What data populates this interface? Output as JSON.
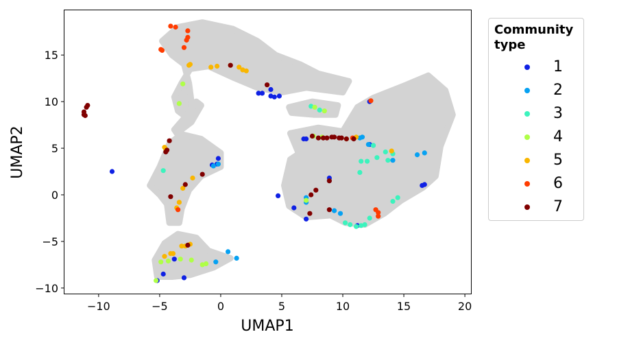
{
  "chart_data": {
    "type": "scatter",
    "xlabel": "UMAP1",
    "ylabel": "UMAP2",
    "xlim": [
      -12.8,
      20.5
    ],
    "ylim": [
      -10.6,
      19.8
    ],
    "xticks": [
      -10,
      -5,
      0,
      5,
      10,
      15,
      20
    ],
    "yticks": [
      -10,
      -5,
      0,
      5,
      10,
      15
    ],
    "grid": false,
    "legend": {
      "title": "Community type",
      "placement": "outside-right",
      "entries": [
        "1",
        "2",
        "3",
        "4",
        "5",
        "6",
        "7"
      ]
    },
    "background_color": "#d3d3d3",
    "background_regions": [
      {
        "name": "top-arm",
        "poly": [
          [
            -4.8,
            16.5
          ],
          [
            -3.5,
            18
          ],
          [
            -1.5,
            18.5
          ],
          [
            1,
            17.8
          ],
          [
            3,
            16.5
          ],
          [
            4.5,
            15
          ],
          [
            6.5,
            14
          ],
          [
            8,
            13
          ],
          [
            10.5,
            12.2
          ],
          [
            10,
            11
          ],
          [
            7,
            11.5
          ],
          [
            5,
            11
          ],
          [
            3,
            11.5
          ],
          [
            1,
            12.6
          ],
          [
            -1,
            13.8
          ],
          [
            -2.5,
            13.5
          ],
          [
            -3.2,
            12
          ],
          [
            -3.8,
            10.5
          ],
          [
            -3.5,
            9
          ],
          [
            -2.5,
            8
          ],
          [
            -2.4,
            10
          ],
          [
            -2.6,
            12
          ],
          [
            -3,
            14
          ],
          [
            -4,
            15
          ]
        ]
      },
      {
        "name": "middle-blob",
        "poly": [
          [
            -5.8,
            1
          ],
          [
            -5,
            3
          ],
          [
            -4.2,
            5.5
          ],
          [
            -3.2,
            6.5
          ],
          [
            -1.6,
            6
          ],
          [
            0,
            4.5
          ],
          [
            0,
            3
          ],
          [
            -1.6,
            2
          ],
          [
            -2.6,
            0.5
          ],
          [
            -3.2,
            -1.5
          ],
          [
            -3.4,
            -3
          ],
          [
            -4.2,
            -3
          ],
          [
            -4.4,
            -1
          ],
          [
            -5,
            0
          ]
        ]
      },
      {
        "name": "bottom-blob",
        "poly": [
          [
            -5.4,
            -7
          ],
          [
            -4.6,
            -5.2
          ],
          [
            -3.5,
            -4.2
          ],
          [
            -2,
            -4.6
          ],
          [
            -1,
            -6
          ],
          [
            0.8,
            -6.8
          ],
          [
            -0.6,
            -7.8
          ],
          [
            -2.5,
            -8.6
          ],
          [
            -4,
            -8.8
          ],
          [
            -5.2,
            -8.8
          ]
        ]
      },
      {
        "name": "right-mass",
        "poly": [
          [
            5.7,
            6.6
          ],
          [
            8,
            7.2
          ],
          [
            10,
            6.8
          ],
          [
            11.2,
            9.4
          ],
          [
            12.5,
            10.4
          ],
          [
            15.2,
            11.8
          ],
          [
            17,
            12.8
          ],
          [
            18.4,
            11.2
          ],
          [
            19,
            8.6
          ],
          [
            18,
            5.2
          ],
          [
            17.6,
            2
          ],
          [
            16.6,
            0.8
          ],
          [
            14.8,
            -0.6
          ],
          [
            13.4,
            -2
          ],
          [
            11.8,
            -3.2
          ],
          [
            10.2,
            -3
          ],
          [
            9,
            -2.2
          ],
          [
            7,
            -2.4
          ],
          [
            5.6,
            -1.2
          ],
          [
            5.2,
            1
          ],
          [
            5.7,
            3.8
          ],
          [
            6.4,
            4.4
          ]
        ]
      },
      {
        "name": "right-mass-upper-link",
        "poly": [
          [
            5.6,
            9.4
          ],
          [
            7.5,
            10
          ],
          [
            9.6,
            9.6
          ],
          [
            9.4,
            8.6
          ],
          [
            7.6,
            8.6
          ],
          [
            5.8,
            8.8
          ]
        ]
      },
      {
        "name": "connector",
        "poly": [
          [
            -3.6,
            6.6
          ],
          [
            -2.4,
            7.8
          ],
          [
            -1.6,
            9.6
          ],
          [
            -2,
            10
          ],
          [
            -3,
            8.2
          ],
          [
            -3.8,
            7
          ]
        ]
      }
    ],
    "series": [
      {
        "name": "1",
        "color": "#0f21e4",
        "points": [
          [
            -8.9,
            2.5
          ],
          [
            -4.7,
            -8.5
          ],
          [
            -3,
            -8.9
          ],
          [
            -5.2,
            -9.2
          ],
          [
            -3.8,
            -6.9
          ],
          [
            -0.3,
            3.3
          ],
          [
            -0.2,
            3.9
          ],
          [
            -0.7,
            3.2
          ],
          [
            3.1,
            10.9
          ],
          [
            3.4,
            10.9
          ],
          [
            4.1,
            10.6
          ],
          [
            4.4,
            10.5
          ],
          [
            4.8,
            10.6
          ],
          [
            4.1,
            11.3
          ],
          [
            4.7,
            -0.1
          ],
          [
            6,
            -1.4
          ],
          [
            7,
            -2.6
          ],
          [
            6.8,
            6
          ],
          [
            7,
            6
          ],
          [
            8.9,
            1.8
          ],
          [
            12.2,
            10
          ],
          [
            12.2,
            5.4
          ],
          [
            16.5,
            1
          ],
          [
            16.7,
            1.1
          ],
          [
            11.2,
            -3.3
          ]
        ]
      },
      {
        "name": "2",
        "color": "#06a1f2",
        "points": [
          [
            -0.2,
            3.3
          ],
          [
            -0.6,
            3.1
          ],
          [
            0.6,
            -6.1
          ],
          [
            1.3,
            -6.8
          ],
          [
            -0.4,
            -7.2
          ],
          [
            7,
            -0.3
          ],
          [
            7,
            -0.8
          ],
          [
            9.3,
            -1.7
          ],
          [
            9.8,
            -2
          ],
          [
            11.4,
            6.1
          ],
          [
            11.6,
            6.2
          ],
          [
            12.5,
            5.3
          ],
          [
            12.1,
            5.4
          ],
          [
            14.1,
            3.7
          ],
          [
            16.1,
            4.3
          ],
          [
            16.7,
            4.5
          ],
          [
            8.9,
            1.5
          ]
        ]
      },
      {
        "name": "3",
        "color": "#3cf3bd",
        "points": [
          [
            -4.7,
            2.6
          ],
          [
            7.4,
            9.5
          ],
          [
            8.1,
            9.1
          ],
          [
            11.5,
            3.6
          ],
          [
            11.4,
            2.4
          ],
          [
            12,
            3.6
          ],
          [
            12.8,
            4
          ],
          [
            13.5,
            4.6
          ],
          [
            14.1,
            4.4
          ],
          [
            13.7,
            3.7
          ],
          [
            14.1,
            -0.7
          ],
          [
            14.5,
            -0.3
          ],
          [
            10.2,
            -3
          ],
          [
            10.6,
            -3.2
          ],
          [
            11.1,
            -3.4
          ],
          [
            11.5,
            -3.3
          ],
          [
            11.8,
            -3.2
          ],
          [
            12.2,
            -2.5
          ],
          [
            12.5,
            5.3
          ]
        ]
      },
      {
        "name": "4",
        "color": "#afff47",
        "points": [
          [
            -3.1,
            11.9
          ],
          [
            -3.4,
            9.8
          ],
          [
            -4.9,
            -7.2
          ],
          [
            -4.3,
            -7.1
          ],
          [
            -3.3,
            -6.9
          ],
          [
            -2.4,
            -7
          ],
          [
            -1.2,
            -7.4
          ],
          [
            -1.5,
            -7.5
          ],
          [
            -5.3,
            -9.2
          ],
          [
            7,
            -0.6
          ],
          [
            7.7,
            9.4
          ],
          [
            8.5,
            9
          ],
          [
            8.3,
            6.2
          ],
          [
            7.6,
            6.3
          ]
        ]
      },
      {
        "name": "5",
        "color": "#f9b600",
        "points": [
          [
            -2.6,
            13.9
          ],
          [
            -2.5,
            14
          ],
          [
            -0.8,
            13.7
          ],
          [
            -0.3,
            13.8
          ],
          [
            0.8,
            13.9
          ],
          [
            1.5,
            13.7
          ],
          [
            1.8,
            13.4
          ],
          [
            2.1,
            13.3
          ],
          [
            -4.6,
            5.1
          ],
          [
            -4.5,
            4.9
          ],
          [
            -3.1,
            0.7
          ],
          [
            -2.3,
            1.8
          ],
          [
            -3.4,
            -0.8
          ],
          [
            -3.6,
            -1.4
          ],
          [
            -4.6,
            -6.6
          ],
          [
            -4.1,
            -6.3
          ],
          [
            -3.9,
            -6.3
          ],
          [
            -3.2,
            -5.5
          ],
          [
            -2.9,
            -5.5
          ],
          [
            -2.5,
            -5.3
          ],
          [
            10.3,
            6
          ],
          [
            11.1,
            6.2
          ],
          [
            14,
            4.7
          ]
        ]
      },
      {
        "name": "6",
        "color": "#ff3c00",
        "points": [
          [
            -4.8,
            15.5
          ],
          [
            -4.9,
            15.6
          ],
          [
            -4.1,
            18.1
          ],
          [
            -3.7,
            18
          ],
          [
            -2.7,
            17.6
          ],
          [
            -2.7,
            16.9
          ],
          [
            -2.8,
            16.6
          ],
          [
            -3,
            15.8
          ],
          [
            -3.5,
            -1.6
          ],
          [
            12.3,
            10.1
          ],
          [
            12.7,
            -1.6
          ],
          [
            12.9,
            -1.9
          ],
          [
            12.9,
            -2.3
          ],
          [
            10.8,
            6.1
          ]
        ]
      },
      {
        "name": "7",
        "color": "#800000",
        "points": [
          [
            -11.2,
            8.9
          ],
          [
            -11.2,
            8.6
          ],
          [
            -11.1,
            8.5
          ],
          [
            -11,
            9.4
          ],
          [
            -10.9,
            9.6
          ],
          [
            0.8,
            13.9
          ],
          [
            3.8,
            11.8
          ],
          [
            -4.2,
            5.8
          ],
          [
            -4.4,
            4.8
          ],
          [
            -4.5,
            4.6
          ],
          [
            -4.1,
            -0.2
          ],
          [
            -2.9,
            1.1
          ],
          [
            -1.5,
            2.2
          ],
          [
            -2.7,
            -5.4
          ],
          [
            7.5,
            6.3
          ],
          [
            8,
            6.1
          ],
          [
            8.4,
            6.1
          ],
          [
            8.7,
            6.1
          ],
          [
            9.1,
            6.2
          ],
          [
            9.3,
            6.2
          ],
          [
            9.7,
            6.1
          ],
          [
            9.9,
            6.1
          ],
          [
            10.3,
            6
          ],
          [
            10.9,
            6
          ],
          [
            7.4,
            0
          ],
          [
            7.8,
            0.5
          ],
          [
            7.3,
            -2
          ],
          [
            8.9,
            -1.6
          ],
          [
            8.9,
            1.5
          ]
        ]
      }
    ]
  }
}
